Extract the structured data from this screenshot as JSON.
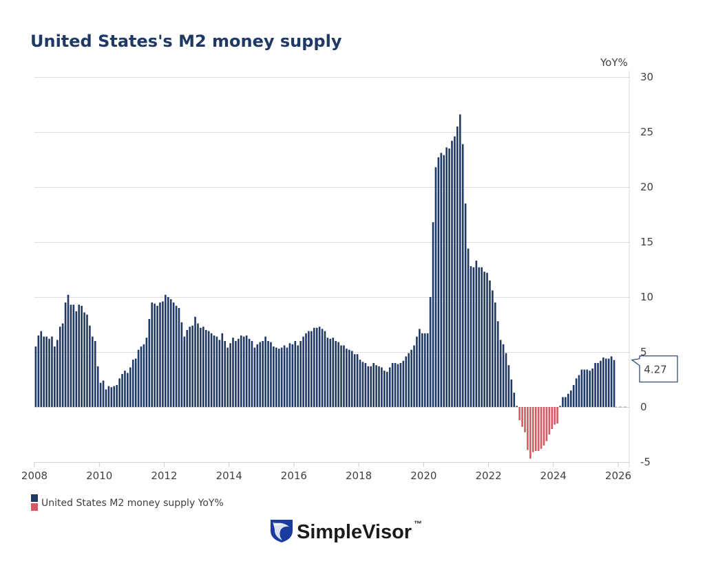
{
  "chart_data": {
    "type": "bar",
    "title": "United States's M2 money supply",
    "ylabel": "YoY%",
    "xlabel": "",
    "ylim": [
      -5,
      30
    ],
    "yticks": [
      "30",
      "25",
      "20",
      "15",
      "10",
      "5",
      "0",
      "-5"
    ],
    "xticks": [
      "2008",
      "2010",
      "2012",
      "2014",
      "2016",
      "2018",
      "2020",
      "2022",
      "2024",
      "2026"
    ],
    "xlim": [
      "2008-01",
      "2026-01"
    ],
    "grid": true,
    "y_axis_position": "right",
    "legend_position": "bottom-left",
    "colors": {
      "positive": "#1f3864",
      "negative": "#d9585f"
    },
    "last_value_label": "4.27",
    "series": [
      {
        "name": "United States M2 money supply YoY%",
        "x": [
          "2008-01",
          "2008-02",
          "2008-03",
          "2008-04",
          "2008-05",
          "2008-06",
          "2008-07",
          "2008-08",
          "2008-09",
          "2008-10",
          "2008-11",
          "2008-12",
          "2009-01",
          "2009-02",
          "2009-03",
          "2009-04",
          "2009-05",
          "2009-06",
          "2009-07",
          "2009-08",
          "2009-09",
          "2009-10",
          "2009-11",
          "2009-12",
          "2010-01",
          "2010-02",
          "2010-03",
          "2010-04",
          "2010-05",
          "2010-06",
          "2010-07",
          "2010-08",
          "2010-09",
          "2010-10",
          "2010-11",
          "2010-12",
          "2011-01",
          "2011-02",
          "2011-03",
          "2011-04",
          "2011-05",
          "2011-06",
          "2011-07",
          "2011-08",
          "2011-09",
          "2011-10",
          "2011-11",
          "2011-12",
          "2012-01",
          "2012-02",
          "2012-03",
          "2012-04",
          "2012-05",
          "2012-06",
          "2012-07",
          "2012-08",
          "2012-09",
          "2012-10",
          "2012-11",
          "2012-12",
          "2013-01",
          "2013-02",
          "2013-03",
          "2013-04",
          "2013-05",
          "2013-06",
          "2013-07",
          "2013-08",
          "2013-09",
          "2013-10",
          "2013-11",
          "2013-12",
          "2014-01",
          "2014-02",
          "2014-03",
          "2014-04",
          "2014-05",
          "2014-06",
          "2014-07",
          "2014-08",
          "2014-09",
          "2014-10",
          "2014-11",
          "2014-12",
          "2015-01",
          "2015-02",
          "2015-03",
          "2015-04",
          "2015-05",
          "2015-06",
          "2015-07",
          "2015-08",
          "2015-09",
          "2015-10",
          "2015-11",
          "2015-12",
          "2016-01",
          "2016-02",
          "2016-03",
          "2016-04",
          "2016-05",
          "2016-06",
          "2016-07",
          "2016-08",
          "2016-09",
          "2016-10",
          "2016-11",
          "2016-12",
          "2017-01",
          "2017-02",
          "2017-03",
          "2017-04",
          "2017-05",
          "2017-06",
          "2017-07",
          "2017-08",
          "2017-09",
          "2017-10",
          "2017-11",
          "2017-12",
          "2018-01",
          "2018-02",
          "2018-03",
          "2018-04",
          "2018-05",
          "2018-06",
          "2018-07",
          "2018-08",
          "2018-09",
          "2018-10",
          "2018-11",
          "2018-12",
          "2019-01",
          "2019-02",
          "2019-03",
          "2019-04",
          "2019-05",
          "2019-06",
          "2019-07",
          "2019-08",
          "2019-09",
          "2019-10",
          "2019-11",
          "2019-12",
          "2020-01",
          "2020-02",
          "2020-03",
          "2020-04",
          "2020-05",
          "2020-06",
          "2020-07",
          "2020-08",
          "2020-09",
          "2020-10",
          "2020-11",
          "2020-12",
          "2021-01",
          "2021-02",
          "2021-03",
          "2021-04",
          "2021-05",
          "2021-06",
          "2021-07",
          "2021-08",
          "2021-09",
          "2021-10",
          "2021-11",
          "2021-12",
          "2022-01",
          "2022-02",
          "2022-03",
          "2022-04",
          "2022-05",
          "2022-06",
          "2022-07",
          "2022-08",
          "2022-09",
          "2022-10",
          "2022-11",
          "2022-12",
          "2023-01",
          "2023-02",
          "2023-03",
          "2023-04",
          "2023-05",
          "2023-06",
          "2023-07",
          "2023-08",
          "2023-09",
          "2023-10",
          "2023-11",
          "2023-12",
          "2024-01",
          "2024-02",
          "2024-03",
          "2024-04",
          "2024-05",
          "2024-06",
          "2024-07",
          "2024-08",
          "2024-09",
          "2024-10",
          "2024-11",
          "2024-12",
          "2025-01",
          "2025-02",
          "2025-03",
          "2025-04",
          "2025-05",
          "2025-06",
          "2025-07",
          "2025-08",
          "2025-09",
          "2025-10",
          "2025-11"
        ],
        "values": [
          5.5,
          6.5,
          6.9,
          6.4,
          6.4,
          6.2,
          6.4,
          5.5,
          6.1,
          7.3,
          7.6,
          9.5,
          10.2,
          9.3,
          9.3,
          8.7,
          9.3,
          9.2,
          8.6,
          8.4,
          7.4,
          6.4,
          6.0,
          3.7,
          2.2,
          2.4,
          1.6,
          1.9,
          1.8,
          1.9,
          2.0,
          2.6,
          3.0,
          3.3,
          3.1,
          3.6,
          4.3,
          4.4,
          5.2,
          5.5,
          5.7,
          6.3,
          8.0,
          9.5,
          9.4,
          9.2,
          9.5,
          9.6,
          10.2,
          10.0,
          9.8,
          9.5,
          9.2,
          9.0,
          7.7,
          6.4,
          7.0,
          7.3,
          7.4,
          8.2,
          7.6,
          7.2,
          7.3,
          7.0,
          6.9,
          6.7,
          6.5,
          6.4,
          6.1,
          6.7,
          6.0,
          5.4,
          5.8,
          6.3,
          6.0,
          6.2,
          6.5,
          6.4,
          6.5,
          6.2,
          6.0,
          5.4,
          5.7,
          5.9,
          6.0,
          6.4,
          6.0,
          5.9,
          5.5,
          5.4,
          5.3,
          5.4,
          5.6,
          5.4,
          5.8,
          5.7,
          6.0,
          5.6,
          6.0,
          6.4,
          6.7,
          6.9,
          6.9,
          7.2,
          7.2,
          7.3,
          7.1,
          6.9,
          6.3,
          6.2,
          6.3,
          6.0,
          5.9,
          5.6,
          5.6,
          5.3,
          5.2,
          5.1,
          4.8,
          4.8,
          4.3,
          4.1,
          4.0,
          3.7,
          3.7,
          4.0,
          3.8,
          3.7,
          3.6,
          3.3,
          3.2,
          3.6,
          4.0,
          4.0,
          3.9,
          4.0,
          4.2,
          4.6,
          4.9,
          5.2,
          5.6,
          6.4,
          7.1,
          6.7,
          6.7,
          6.7,
          10.0,
          16.8,
          21.8,
          22.7,
          23.1,
          22.9,
          23.6,
          23.5,
          24.2,
          24.6,
          25.5,
          26.6,
          23.9,
          18.5,
          14.4,
          12.8,
          12.7,
          13.3,
          12.7,
          12.7,
          12.3,
          12.2,
          11.5,
          10.6,
          9.5,
          7.8,
          6.1,
          5.7,
          4.9,
          3.8,
          2.5,
          1.3,
          0.1,
          -1.2,
          -1.8,
          -2.3,
          -3.9,
          -4.7,
          -4.1,
          -4.0,
          -4.0,
          -3.8,
          -3.5,
          -3.1,
          -2.5,
          -2.0,
          -1.6,
          -1.5,
          0.1,
          0.9,
          0.9,
          1.2,
          1.5,
          2.0,
          2.6,
          2.9,
          3.4,
          3.4,
          3.4,
          3.3,
          3.5,
          4.0,
          4.0,
          4.2,
          4.5,
          4.4,
          4.4,
          4.6,
          4.27
        ]
      }
    ]
  },
  "brand": {
    "name": "SimpleVisor",
    "trademark": "™"
  }
}
